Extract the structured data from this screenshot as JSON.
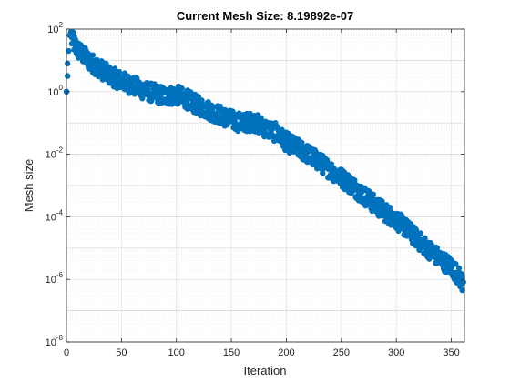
{
  "chart_data": {
    "type": "scatter",
    "title": "Current Mesh Size: 8.19892e-07",
    "xlabel": "Iteration",
    "ylabel": "Mesh size",
    "xlim": [
      0,
      362
    ],
    "ylim_log10": [
      -8,
      2
    ],
    "yscale": "log",
    "grid": true,
    "minor_grid": true,
    "marker_color": "#0072BD",
    "xticks": [
      "0",
      "50",
      "100",
      "150",
      "200",
      "250",
      "300",
      "350"
    ],
    "yticks": [
      {
        "base": "10",
        "exp": "2"
      },
      {
        "base": "10",
        "exp": "0"
      },
      {
        "base": "10",
        "exp": "-2"
      },
      {
        "base": "10",
        "exp": "-4"
      },
      {
        "base": "10",
        "exp": "-6"
      },
      {
        "base": "10",
        "exp": "-8"
      }
    ],
    "trend_log10": [
      [
        0,
        0.0
      ],
      [
        1,
        0.5
      ],
      [
        2,
        1.0
      ],
      [
        3,
        1.5
      ],
      [
        4,
        1.7
      ],
      [
        6,
        1.6
      ],
      [
        10,
        1.35
      ],
      [
        20,
        1.0
      ],
      [
        30,
        0.75
      ],
      [
        40,
        0.5
      ],
      [
        50,
        0.35
      ],
      [
        60,
        0.2
      ],
      [
        70,
        0.05
      ],
      [
        80,
        -0.05
      ],
      [
        90,
        -0.15
      ],
      [
        100,
        -0.1
      ],
      [
        110,
        -0.25
      ],
      [
        120,
        -0.45
      ],
      [
        130,
        -0.6
      ],
      [
        140,
        -0.75
      ],
      [
        150,
        -0.9
      ],
      [
        160,
        -1.0
      ],
      [
        170,
        -0.95
      ],
      [
        180,
        -1.15
      ],
      [
        190,
        -1.3
      ],
      [
        200,
        -1.6
      ],
      [
        210,
        -1.8
      ],
      [
        220,
        -2.0
      ],
      [
        230,
        -2.25
      ],
      [
        240,
        -2.5
      ],
      [
        250,
        -2.75
      ],
      [
        260,
        -3.0
      ],
      [
        270,
        -3.3
      ],
      [
        280,
        -3.6
      ],
      [
        290,
        -3.85
      ],
      [
        300,
        -4.1
      ],
      [
        310,
        -4.4
      ],
      [
        320,
        -4.75
      ],
      [
        330,
        -5.05
      ],
      [
        340,
        -5.35
      ],
      [
        350,
        -5.6
      ],
      [
        355,
        -5.8
      ],
      [
        360,
        -6.09
      ]
    ],
    "scatter_spread_log10": 0.3,
    "first_points": [
      [
        0,
        0.0
      ],
      [
        1,
        0.9
      ],
      [
        1,
        0.5
      ],
      [
        2,
        1.3
      ],
      [
        3,
        1.8
      ],
      [
        4,
        1.9
      ]
    ],
    "last_point": [
      361,
      -6.09
    ]
  }
}
